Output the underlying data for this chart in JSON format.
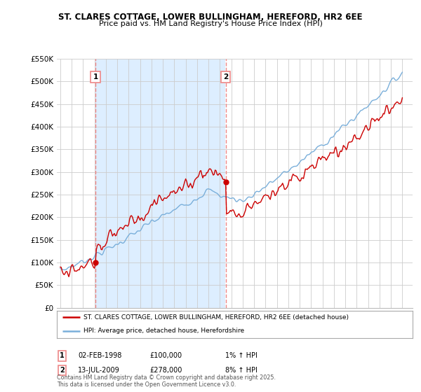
{
  "title_line1": "ST. CLARES COTTAGE, LOWER BULLINGHAM, HEREFORD, HR2 6EE",
  "title_line2": "Price paid vs. HM Land Registry's House Price Index (HPI)",
  "background_color": "#ffffff",
  "grid_color": "#cccccc",
  "sale1_date": "02-FEB-1998",
  "sale1_price": 100000,
  "sale1_label": "1% ↑ HPI",
  "sale2_date": "13-JUL-2009",
  "sale2_price": 278000,
  "sale2_label": "8% ↑ HPI",
  "legend_label1": "ST. CLARES COTTAGE, LOWER BULLINGHAM, HEREFORD, HR2 6EE (detached house)",
  "legend_label2": "HPI: Average price, detached house, Herefordshire",
  "copyright_text": "Contains HM Land Registry data © Crown copyright and database right 2025.\nThis data is licensed under the Open Government Licence v3.0.",
  "property_color": "#cc0000",
  "hpi_color": "#7aafda",
  "shade_color": "#ddeeff",
  "sale_vline_color": "#ee8888",
  "ylim_max": 550000,
  "ylim_min": 0,
  "sale1_year_float": 1998.083,
  "sale2_year_float": 2009.5
}
